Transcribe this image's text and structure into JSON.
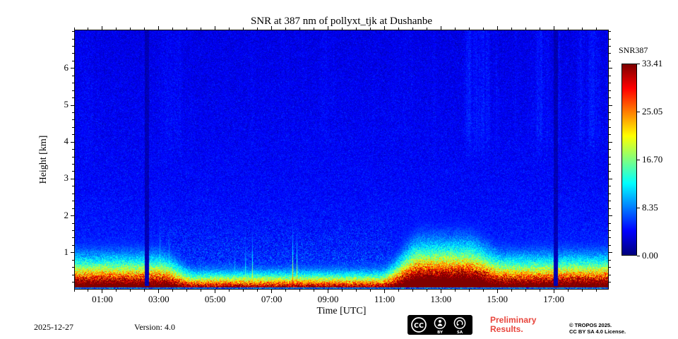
{
  "title": "SNR at 387 nm of pollyxt_tjk at Dushanbe",
  "colors": {
    "preliminary_red": "#e8453c",
    "frame": "#000000",
    "background": "#ffffff",
    "low_snr_blue": "#0a5ce6"
  },
  "footer": {
    "date": "2025-12-27",
    "version": "Version: 4.0",
    "preliminary_line1": "Preliminary",
    "preliminary_line2": "Results.",
    "copyright_line1": "© TROPOS 2025.",
    "copyright_line2": "CC BY SA 4.0 License.",
    "cc_badge": {
      "cc": "CC",
      "by": "BY",
      "sa": "SA"
    }
  },
  "chart_data": {
    "type": "heatmap",
    "title": "SNR at 387 nm of pollyxt_tjk at Dushanbe",
    "xlabel": "Time [UTC]",
    "ylabel": "Height [km]",
    "x_range_hours": [
      0,
      18.95
    ],
    "x_major_ticks": [
      {
        "hour": 1,
        "label": "01:00"
      },
      {
        "hour": 3,
        "label": "03:00"
      },
      {
        "hour": 5,
        "label": "05:00"
      },
      {
        "hour": 7,
        "label": "07:00"
      },
      {
        "hour": 9,
        "label": "09:00"
      },
      {
        "hour": 11,
        "label": "11:00"
      },
      {
        "hour": 13,
        "label": "13:00"
      },
      {
        "hour": 15,
        "label": "15:00"
      },
      {
        "hour": 17,
        "label": "17:00"
      }
    ],
    "x_minor_step_hours": 0.5,
    "y_range_km": [
      0,
      7.05
    ],
    "y_major_ticks": [
      {
        "km": 1,
        "label": "1"
      },
      {
        "km": 2,
        "label": "2"
      },
      {
        "km": 3,
        "label": "3"
      },
      {
        "km": 4,
        "label": "4"
      },
      {
        "km": 5,
        "label": "5"
      },
      {
        "km": 6,
        "label": "6"
      }
    ],
    "y_minor_step_km": 0.2,
    "colorbar": {
      "label": "SNR387",
      "colormap": "jet",
      "range": [
        0,
        33.41
      ],
      "ticks": [
        {
          "value": 0,
          "label": "0.00"
        },
        {
          "value": 8.35,
          "label": "8.35"
        },
        {
          "value": 16.7,
          "label": "16.70"
        },
        {
          "value": 25.05,
          "label": "25.05"
        },
        {
          "value": 33.41,
          "label": "33.41"
        }
      ]
    },
    "features": {
      "description": "Lidar SNR quicklook: blue low-SNR background aloft with speckle noise; high-SNR red/orange surface layer below ~0.5 km; yellow-green transition above it.",
      "surface_layer_top_km_night": 0.55,
      "surface_layer_top_km_midday": 0.33,
      "surface_layer_top_km_enhanced": 0.7,
      "daytime_thinning_hours": [
        3.2,
        11.0
      ],
      "enhanced_layer_hours": [
        11.5,
        14.5
      ],
      "calibration_gap_hours": [
        2.57,
        17.1
      ],
      "calibration_gap_halfwidth_hours": 0.075,
      "narrow_green_streak_hours": [
        2.9,
        8.6
      ],
      "faint_top_streak_hours": [
        12.5,
        18.95
      ],
      "thin_teal_line_at_bottom": true
    }
  }
}
